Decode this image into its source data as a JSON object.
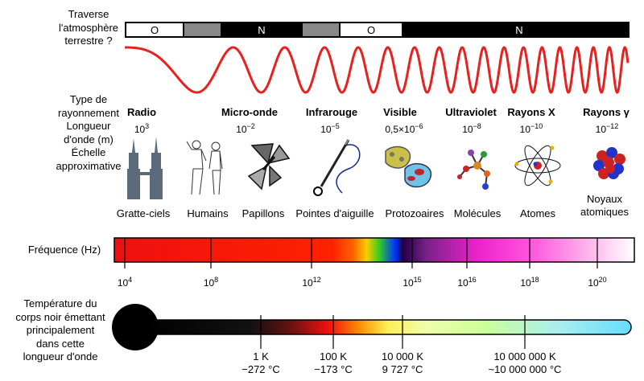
{
  "left_labels": {
    "atmosphere": [
      "Traverse",
      "l'atmosphère",
      "terrestre ?"
    ],
    "types": [
      "Type de",
      "rayonnement",
      "Longueur",
      "d'onde (m)",
      "Échelle",
      "approximative"
    ],
    "frequency": "Fréquence (Hz)",
    "temperature": [
      "Température du",
      "corps noir émettant",
      "principalement",
      "dans cette",
      "longueur d'onde"
    ]
  },
  "atmosphere_bar": {
    "segments": [
      {
        "label": "O",
        "color": "#ffffff"
      },
      {
        "label": "",
        "color": "#888888"
      },
      {
        "label": "N",
        "color": "#000000"
      },
      {
        "label": "",
        "color": "#888888"
      },
      {
        "label": "O",
        "color": "#ffffff"
      },
      {
        "label": "N",
        "color": "#000000"
      }
    ]
  },
  "radiation": [
    {
      "name": "Radio",
      "wl_base": "10",
      "wl_exp": "3"
    },
    {
      "name": "Micro-onde",
      "wl_base": "10",
      "wl_exp": "−2"
    },
    {
      "name": "Infrarouge",
      "wl_base": "10",
      "wl_exp": "−5"
    },
    {
      "name": "Visible",
      "wl_base": "0,5×10",
      "wl_exp": "−6"
    },
    {
      "name": "Ultraviolet",
      "wl_base": "10",
      "wl_exp": "−8"
    },
    {
      "name": "Rayons X",
      "wl_base": "10",
      "wl_exp": "−10"
    },
    {
      "name": "Rayons γ",
      "wl_base": "10",
      "wl_exp": "−12"
    }
  ],
  "scale_labels": [
    "Gratte-ciels",
    "Humains",
    "Papillons",
    "Pointes d'aiguille",
    "Protozoaires",
    "Molécules",
    "Atomes",
    "Noyaux",
    "atomiques"
  ],
  "frequency_ticks": [
    {
      "base": "10",
      "exp": "4"
    },
    {
      "base": "10",
      "exp": "8"
    },
    {
      "base": "10",
      "exp": "12"
    },
    {
      "base": "10",
      "exp": "15"
    },
    {
      "base": "10",
      "exp": "16"
    },
    {
      "base": "10",
      "exp": "18"
    },
    {
      "base": "10",
      "exp": "20"
    }
  ],
  "temperatures": [
    {
      "k": "1 K",
      "c": "−272 °C"
    },
    {
      "k": "100 K",
      "c": "−173 °C"
    },
    {
      "k": "10 000 K",
      "c": "9 727 °C"
    },
    {
      "k": "10 000 000 K",
      "c": "~10 000 000 °C"
    }
  ],
  "colors": {
    "wave": "#e8201e"
  }
}
